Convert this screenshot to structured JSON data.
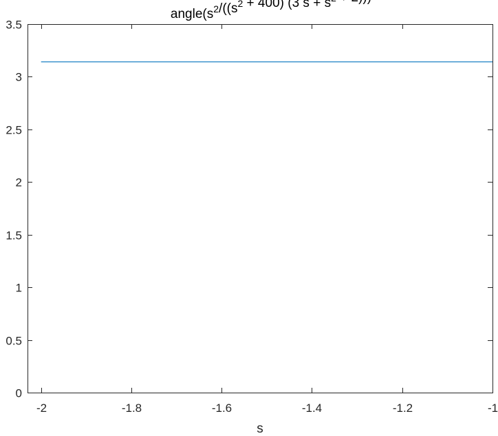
{
  "chart_data": {
    "type": "line",
    "title": {
      "parts": [
        {
          "text": "angle(s",
          "sup": false
        },
        {
          "text": "2",
          "sup": true
        },
        {
          "text": "/((s",
          "sup": false
        },
        {
          "text": "2",
          "sup": true
        },
        {
          "text": " + 400) (3 s + s",
          "sup": false
        },
        {
          "text": "2",
          "sup": true
        },
        {
          "text": " + 2)))",
          "sup": false
        }
      ]
    },
    "xlabel": "s",
    "ylabel": "",
    "xlim": [
      -2.03,
      -1
    ],
    "ylim": [
      0,
      3.5
    ],
    "xticks": [
      -2,
      -1.8,
      -1.6,
      -1.4,
      -1.2,
      -1
    ],
    "xtick_labels": [
      "-2",
      "-1.8",
      "-1.6",
      "-1.4",
      "-1.2",
      "-1"
    ],
    "yticks": [
      0,
      0.5,
      1,
      1.5,
      2,
      2.5,
      3,
      3.5
    ],
    "ytick_labels": [
      "0",
      "0.5",
      "1",
      "1.5",
      "2",
      "2.5",
      "3",
      "3.5"
    ],
    "grid": false,
    "series": [
      {
        "color": "#0072BD",
        "x": [
          -2,
          -1
        ],
        "y": [
          3.1416,
          3.1416
        ]
      }
    ]
  }
}
